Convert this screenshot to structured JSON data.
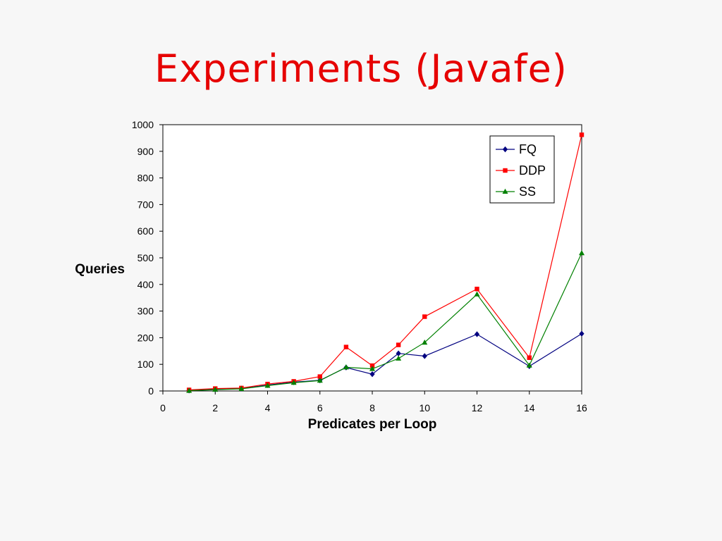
{
  "slide": {
    "title": "Experiments (Javafe)"
  },
  "chart_data": {
    "type": "line",
    "xlabel": "Predicates per Loop",
    "ylabel": "Queries",
    "xlim": [
      0,
      16
    ],
    "ylim": [
      0,
      1000
    ],
    "x_ticks": [
      0,
      2,
      4,
      6,
      8,
      10,
      12,
      14,
      16
    ],
    "y_ticks": [
      0,
      100,
      200,
      300,
      400,
      500,
      600,
      700,
      800,
      900,
      1000
    ],
    "grid": false,
    "legend_position": "top-right",
    "x": [
      1,
      2,
      3,
      4,
      5,
      6,
      7,
      8,
      9,
      10,
      12,
      14,
      16
    ],
    "series": [
      {
        "name": "FQ",
        "color": "#000080",
        "marker": "diamond",
        "values": [
          2,
          6,
          9,
          22,
          33,
          40,
          88,
          63,
          141,
          131,
          213,
          93,
          215
        ]
      },
      {
        "name": "DDP",
        "color": "#ff0000",
        "marker": "square",
        "values": [
          4,
          9,
          11,
          26,
          36,
          54,
          165,
          95,
          173,
          279,
          383,
          125,
          962
        ]
      },
      {
        "name": "SS",
        "color": "#008000",
        "marker": "triangle",
        "values": [
          1,
          5,
          8,
          20,
          31,
          39,
          89,
          83,
          122,
          182,
          363,
          96,
          518
        ]
      }
    ]
  }
}
